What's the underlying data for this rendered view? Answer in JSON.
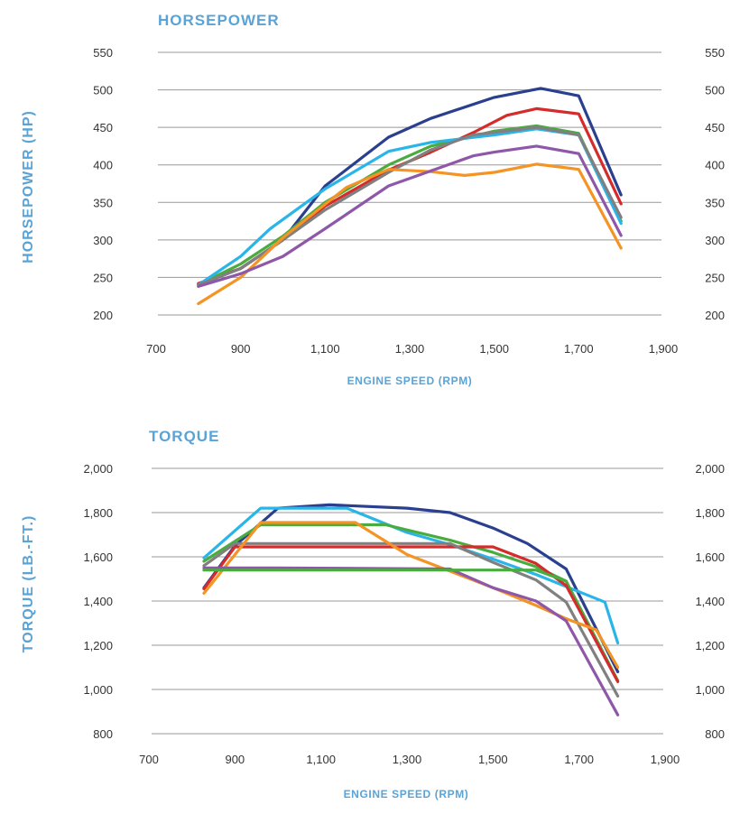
{
  "chart_data": [
    {
      "type": "line",
      "title": "HORSEPOWER",
      "xlabel": "ENGINE SPEED (RPM)",
      "ylabel": "HORSEPOWER (HP)",
      "xlim": [
        700,
        1900
      ],
      "ylim": [
        200,
        550
      ],
      "xticks": [
        "700",
        "900",
        "1,100",
        "1,300",
        "1,500",
        "1,700",
        "1,900"
      ],
      "yticks": [
        "200",
        "250",
        "300",
        "350",
        "400",
        "450",
        "500",
        "550"
      ],
      "grid": true,
      "series": [
        {
          "color": "#2b3f8f",
          "points": [
            [
              800,
              240
            ],
            [
              900,
              262
            ],
            [
              1000,
              300
            ],
            [
              1100,
              372
            ],
            [
              1250,
              437
            ],
            [
              1350,
              462
            ],
            [
              1500,
              490
            ],
            [
              1610,
              502
            ],
            [
              1700,
              492
            ],
            [
              1800,
              360
            ]
          ]
        },
        {
          "color": "#d42b2b",
          "points": [
            [
              800,
              242
            ],
            [
              900,
              262
            ],
            [
              1000,
              300
            ],
            [
              1100,
              345
            ],
            [
              1250,
              393
            ],
            [
              1350,
              417
            ],
            [
              1450,
              443
            ],
            [
              1530,
              466
            ],
            [
              1600,
              475
            ],
            [
              1700,
              468
            ],
            [
              1800,
              348
            ]
          ]
        },
        {
          "color": "#4aab3f",
          "points": [
            [
              800,
              240
            ],
            [
              900,
              268
            ],
            [
              1000,
              305
            ],
            [
              1100,
              350
            ],
            [
              1250,
              400
            ],
            [
              1350,
              425
            ],
            [
              1500,
              445
            ],
            [
              1600,
              452
            ],
            [
              1700,
              442
            ],
            [
              1800,
              325
            ]
          ]
        },
        {
          "color": "#29b5e8",
          "points": [
            [
              800,
              240
            ],
            [
              900,
              278
            ],
            [
              970,
              315
            ],
            [
              1100,
              368
            ],
            [
              1250,
              418
            ],
            [
              1350,
              430
            ],
            [
              1500,
              440
            ],
            [
              1600,
              448
            ],
            [
              1700,
              440
            ],
            [
              1800,
              322
            ]
          ]
        },
        {
          "color": "#808080",
          "points": [
            [
              800,
              240
            ],
            [
              900,
              262
            ],
            [
              1000,
              300
            ],
            [
              1100,
              340
            ],
            [
              1250,
              390
            ],
            [
              1350,
              420
            ],
            [
              1450,
              440
            ],
            [
              1600,
              450
            ],
            [
              1700,
              440
            ],
            [
              1800,
              330
            ]
          ]
        },
        {
          "color": "#f39424",
          "points": [
            [
              800,
              215
            ],
            [
              900,
              250
            ],
            [
              1000,
              303
            ],
            [
              1150,
              370
            ],
            [
              1250,
              394
            ],
            [
              1350,
              391
            ],
            [
              1430,
              386
            ],
            [
              1500,
              390
            ],
            [
              1600,
              401
            ],
            [
              1700,
              394
            ],
            [
              1800,
              289
            ]
          ]
        },
        {
          "color": "#8e57a8",
          "points": [
            [
              800,
              238
            ],
            [
              900,
              255
            ],
            [
              1000,
              278
            ],
            [
              1100,
              315
            ],
            [
              1250,
              372
            ],
            [
              1350,
              392
            ],
            [
              1450,
              412
            ],
            [
              1500,
              417
            ],
            [
              1600,
              425
            ],
            [
              1700,
              415
            ],
            [
              1800,
              306
            ]
          ]
        }
      ]
    },
    {
      "type": "line",
      "title": "TORQUE",
      "xlabel": "ENGINE SPEED (RPM)",
      "ylabel": "TORQUE (LB.-FT.)",
      "xlim": [
        700,
        1900
      ],
      "ylim": [
        800,
        2000
      ],
      "xticks": [
        "700",
        "900",
        "1,100",
        "1,300",
        "1,500",
        "1,700",
        "1,900"
      ],
      "yticks": [
        "800",
        "1,000",
        "1,200",
        "1,400",
        "1,600",
        "1,800",
        "2,000"
      ],
      "grid": true,
      "series": [
        {
          "color": "#2b3f8f",
          "points": [
            [
              828,
              1460
            ],
            [
              900,
              1650
            ],
            [
              1000,
              1820
            ],
            [
              1120,
              1835
            ],
            [
              1300,
              1820
            ],
            [
              1400,
              1800
            ],
            [
              1500,
              1730
            ],
            [
              1580,
              1660
            ],
            [
              1670,
              1545
            ],
            [
              1790,
              1080
            ]
          ]
        },
        {
          "color": "#29b5e8",
          "points": [
            [
              828,
              1595
            ],
            [
              960,
              1820
            ],
            [
              1160,
              1820
            ],
            [
              1300,
              1710
            ],
            [
              1400,
              1655
            ],
            [
              1500,
              1590
            ],
            [
              1600,
              1520
            ],
            [
              1760,
              1395
            ],
            [
              1790,
              1210
            ]
          ]
        },
        {
          "color": "#4aab3f",
          "points": [
            [
              828,
              1580
            ],
            [
              960,
              1745
            ],
            [
              1250,
              1745
            ],
            [
              1400,
              1675
            ],
            [
              1500,
              1620
            ],
            [
              1600,
              1555
            ],
            [
              1670,
              1490
            ],
            [
              1790,
              1040
            ]
          ]
        },
        {
          "color": "#d42b2b",
          "points": [
            [
              828,
              1455
            ],
            [
              900,
              1645
            ],
            [
              1500,
              1645
            ],
            [
              1600,
              1570
            ],
            [
              1670,
              1470
            ],
            [
              1790,
              1035
            ]
          ]
        },
        {
          "color": "#808080",
          "points": [
            [
              828,
              1560
            ],
            [
              900,
              1660
            ],
            [
              1400,
              1660
            ],
            [
              1500,
              1575
            ],
            [
              1600,
              1495
            ],
            [
              1670,
              1395
            ],
            [
              1790,
              970
            ]
          ]
        },
        {
          "color": "#f39424",
          "points": [
            [
              828,
              1435
            ],
            [
              960,
              1755
            ],
            [
              1180,
              1755
            ],
            [
              1300,
              1610
            ],
            [
              1500,
              1460
            ],
            [
              1600,
              1380
            ],
            [
              1670,
              1320
            ],
            [
              1740,
              1270
            ],
            [
              1790,
              1100
            ]
          ]
        },
        {
          "color": "#8e57a8",
          "points": [
            [
              828,
              1550
            ],
            [
              1000,
              1550
            ],
            [
              1400,
              1545
            ],
            [
              1500,
              1460
            ],
            [
              1600,
              1400
            ],
            [
              1670,
              1310
            ],
            [
              1790,
              885
            ]
          ]
        },
        {
          "color": "#4aab3f",
          "points": [
            [
              828,
              1540
            ],
            [
              1600,
              1540
            ],
            [
              1670,
              1490
            ]
          ]
        }
      ]
    }
  ]
}
